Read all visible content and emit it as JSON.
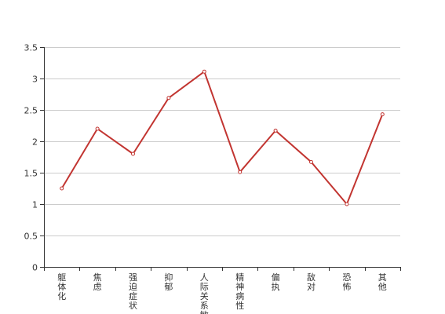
{
  "chart_data": {
    "type": "line",
    "categories": [
      "躯体化",
      "焦虑",
      "强迫症状",
      "抑郁",
      "人际关系敏感",
      "精神病性",
      "偏执",
      "敌对",
      "恐怖",
      "其他"
    ],
    "series": [
      {
        "values": [
          1.25,
          2.2,
          1.8,
          2.69,
          3.11,
          1.51,
          2.17,
          1.67,
          1.0,
          2.43
        ]
      }
    ],
    "y_ticks": [
      "0",
      "0.5",
      "1",
      "1.5",
      "2",
      "2.5",
      "3",
      "3.5"
    ],
    "ylim": [
      0,
      3.5
    ],
    "grid": true,
    "line_color": "#c23531",
    "grid_color": "#cccccc",
    "axis_color": "#333333"
  }
}
